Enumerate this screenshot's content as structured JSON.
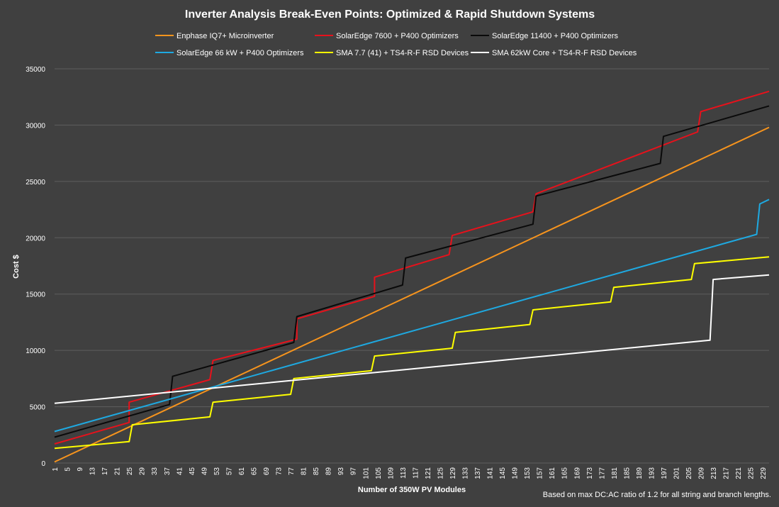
{
  "chart_data": {
    "type": "line",
    "title": "Inverter Analysis Break-Even Points: Optimized & Rapid Shutdown Systems",
    "xlabel": "Number of 350W PV Modules",
    "ylabel": "Cost $",
    "note": "Based on max DC:AC ratio of 1.2 for all string and branch lengths.",
    "legend_position": "top",
    "grid": "horizontal",
    "xlim": [
      1,
      231
    ],
    "x_tick_labels": [
      "1",
      "5",
      "9",
      "13",
      "17",
      "21",
      "25",
      "29",
      "33",
      "37",
      "41",
      "45",
      "49",
      "53",
      "57",
      "61",
      "65",
      "69",
      "73",
      "77",
      "81",
      "85",
      "89",
      "93",
      "97",
      "101",
      "105",
      "109",
      "113",
      "117",
      "121",
      "125",
      "129",
      "133",
      "137",
      "141",
      "145",
      "149",
      "153",
      "157",
      "161",
      "165",
      "169",
      "173",
      "177",
      "181",
      "185",
      "189",
      "193",
      "197",
      "201",
      "205",
      "209",
      "213",
      "217",
      "221",
      "225",
      "229"
    ],
    "ylim": [
      0,
      35000
    ],
    "y_ticks": [
      0,
      5000,
      10000,
      15000,
      20000,
      25000,
      30000,
      35000
    ],
    "y_tick_labels": [
      "0",
      "5000",
      "10000",
      "15000",
      "20000",
      "25000",
      "30000",
      "35000"
    ],
    "series": [
      {
        "name": "Enphase IQ7+ Microinverter",
        "color": "#f7941d",
        "x": [
          1,
          231
        ],
        "y": [
          100,
          29800
        ]
      },
      {
        "name": "SolarEdge 7600 + P400 Optimizers",
        "color": "#e8111b",
        "x": [
          1,
          25,
          25,
          51,
          52,
          79,
          79,
          104,
          104,
          128,
          129,
          155,
          156,
          208,
          209,
          231
        ],
        "y": [
          1700,
          3600,
          5400,
          7400,
          9100,
          11000,
          12800,
          14800,
          16500,
          18500,
          20200,
          22300,
          23900,
          29400,
          31200,
          33000
        ]
      },
      {
        "name": "SolarEdge 11400 + P400 Optimizers",
        "color": "#0a0a0a",
        "x": [
          1,
          38,
          39,
          78,
          79,
          113,
          114,
          155,
          156,
          196,
          197,
          231
        ],
        "y": [
          2300,
          5200,
          7700,
          10700,
          13000,
          15800,
          18200,
          21200,
          23700,
          26600,
          29000,
          31700
        ]
      },
      {
        "name": "SolarEdge 66 kW + P400 Optimizers",
        "color": "#1ea9e1",
        "x": [
          1,
          227,
          228,
          231
        ],
        "y": [
          2800,
          20300,
          23000,
          23400
        ]
      },
      {
        "name": "SMA 7.7 (41) + TS4-R-F RSD Devices",
        "color": "#ffff00",
        "x": [
          1,
          25,
          26,
          51,
          52,
          77,
          78,
          103,
          104,
          129,
          130,
          154,
          155,
          180,
          181,
          206,
          207,
          231
        ],
        "y": [
          1300,
          1900,
          3400,
          4100,
          5400,
          6100,
          7500,
          8200,
          9500,
          10200,
          11600,
          12300,
          13600,
          14300,
          15600,
          16300,
          17700,
          18300
        ]
      },
      {
        "name": "SMA 62kW Core + TS4-R-F RSD Devices",
        "color": "#ffffff",
        "x": [
          1,
          212,
          213,
          231
        ],
        "y": [
          5300,
          10900,
          16300,
          16700
        ]
      }
    ]
  }
}
